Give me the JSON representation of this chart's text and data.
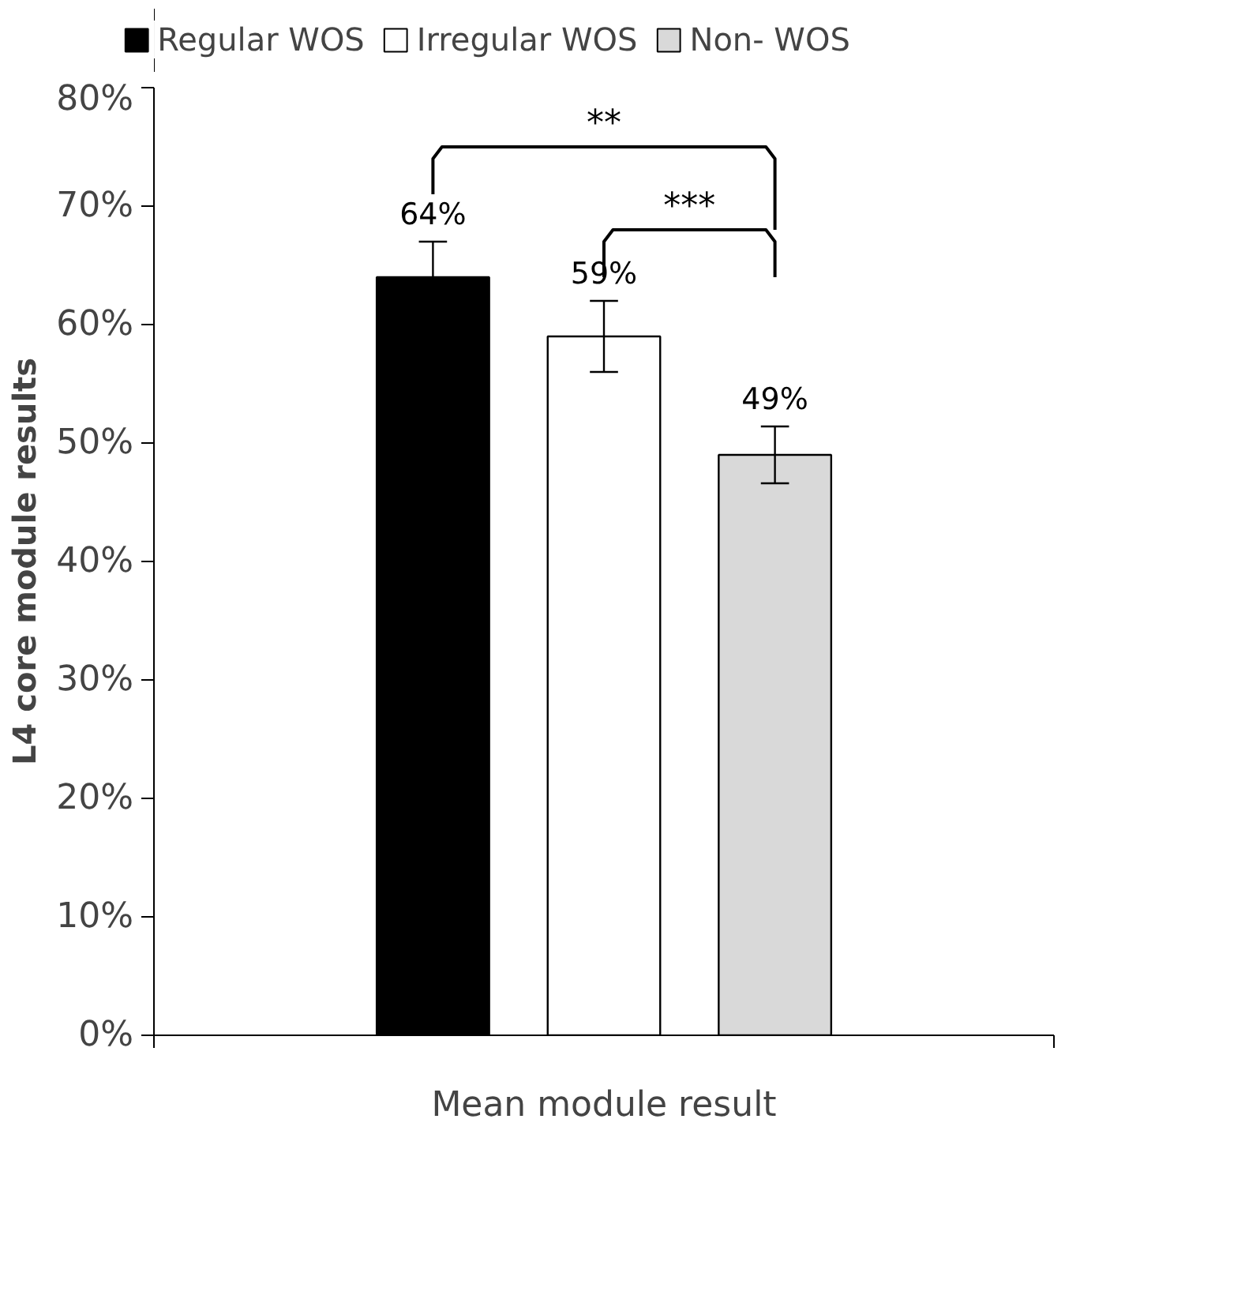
{
  "chart_data": {
    "type": "bar",
    "categories": [
      "Mean module result"
    ],
    "ylabel": "L4 core module results",
    "series": [
      {
        "name": "Regular WOS",
        "color": "#000000",
        "values": [
          64
        ],
        "errors": [
          3
        ],
        "value_labels": [
          "64%"
        ]
      },
      {
        "name": "Irregular WOS",
        "color": "#ffffff",
        "values": [
          59
        ],
        "errors": [
          3
        ],
        "value_labels": [
          "59%"
        ]
      },
      {
        "name": "Non- WOS",
        "color": "#d9d9d9",
        "values": [
          49
        ],
        "errors": [
          2.4
        ],
        "value_labels": [
          "49%"
        ]
      }
    ],
    "ylim": [
      0,
      80
    ],
    "yticks": [
      {
        "value": 0,
        "label": "0%"
      },
      {
        "value": 10,
        "label": "10%"
      },
      {
        "value": 20,
        "label": "20%"
      },
      {
        "value": 30,
        "label": "30%"
      },
      {
        "value": 40,
        "label": "40%"
      },
      {
        "value": 50,
        "label": "50%"
      },
      {
        "value": 60,
        "label": "60%"
      },
      {
        "value": 70,
        "label": "70%"
      },
      {
        "value": 80,
        "label": "80%"
      }
    ],
    "annotations": [
      "**",
      "***"
    ],
    "grid": false,
    "legend": "top"
  }
}
